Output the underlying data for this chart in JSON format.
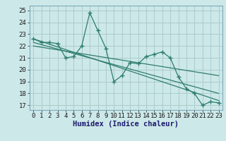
{
  "xlabel": "Humidex (Indice chaleur)",
  "ylabel": "",
  "background_color": "#cde8e8",
  "line_color": "#2e7d6e",
  "grid_color": "#aacccc",
  "x_data": [
    0,
    1,
    2,
    3,
    4,
    5,
    6,
    7,
    8,
    9,
    10,
    11,
    12,
    13,
    14,
    15,
    16,
    17,
    18,
    19,
    20,
    21,
    22,
    23
  ],
  "y_data": [
    22.6,
    22.3,
    22.3,
    22.2,
    21.0,
    21.1,
    22.0,
    24.8,
    23.3,
    21.8,
    19.0,
    19.5,
    20.6,
    20.5,
    21.1,
    21.3,
    21.5,
    21.0,
    19.4,
    18.4,
    18.0,
    17.0,
    17.3,
    17.2
  ],
  "trend1_x": [
    0,
    23
  ],
  "trend1_y": [
    22.6,
    17.4
  ],
  "trend2_x": [
    0,
    23
  ],
  "trend2_y": [
    22.3,
    18.0
  ],
  "trend3_x": [
    0,
    23
  ],
  "trend3_y": [
    22.0,
    19.5
  ],
  "ylim": [
    16.6,
    25.4
  ],
  "xlim": [
    -0.5,
    23.5
  ],
  "yticks": [
    17,
    18,
    19,
    20,
    21,
    22,
    23,
    24,
    25
  ],
  "xticks": [
    0,
    1,
    2,
    3,
    4,
    5,
    6,
    7,
    8,
    9,
    10,
    11,
    12,
    13,
    14,
    15,
    16,
    17,
    18,
    19,
    20,
    21,
    22,
    23
  ],
  "tick_fontsize": 6.5,
  "xlabel_fontsize": 7.5,
  "xlabel_color": "#1a1a6e",
  "spine_color": "#7aabbb"
}
